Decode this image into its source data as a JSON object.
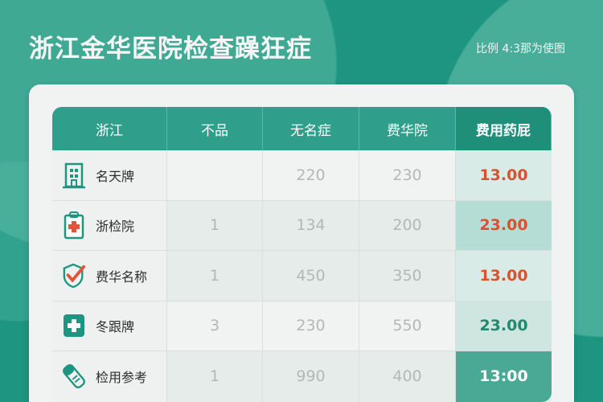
{
  "title": "浙江金华医院检查躁狂症",
  "ratio_note": "比例 4:3那为使图",
  "colors": {
    "accent": "#1e9580",
    "red": "#d9512f",
    "green": "#1e8a6f"
  },
  "table": {
    "headers": [
      "浙江",
      "不品",
      "无名症",
      "费华院",
      "费用药屁"
    ],
    "rows": [
      {
        "icon": "building-icon",
        "name": "名天牌",
        "c1": "",
        "c2": "220",
        "c3": "230",
        "fee": "13.00",
        "fee_color": "red"
      },
      {
        "icon": "clipboard-cross-icon",
        "name": "浙检院",
        "c1": "1",
        "c2": "134",
        "c3": "200",
        "fee": "23.00",
        "fee_color": "red"
      },
      {
        "icon": "shield-check-icon",
        "name": "费华名称",
        "c1": "1",
        "c2": "450",
        "c3": "350",
        "fee": "13.00",
        "fee_color": "red"
      },
      {
        "icon": "medical-cross-icon",
        "name": "冬跟牌",
        "c1": "3",
        "c2": "230",
        "c3": "550",
        "fee": "23.00",
        "fee_color": "green"
      },
      {
        "icon": "bandage-icon",
        "name": "检用参考",
        "c1": "1",
        "c2": "990",
        "c3": "400",
        "fee": "13:00",
        "fee_color": "white"
      }
    ]
  }
}
